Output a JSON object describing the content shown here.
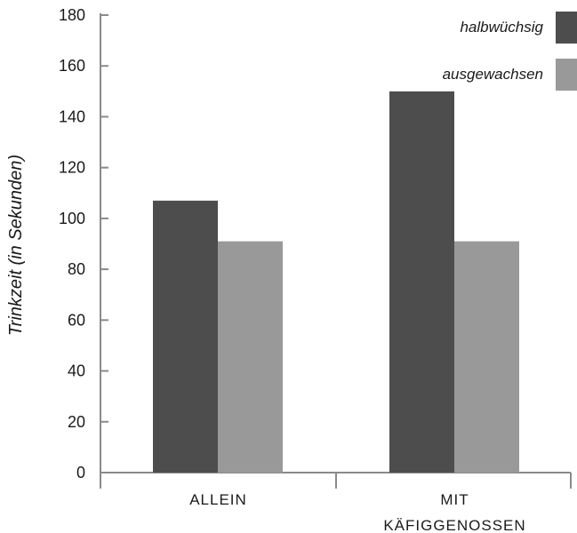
{
  "chart_data": {
    "type": "bar",
    "title": "",
    "xlabel": "",
    "ylabel": "Trinkzeit (in Sekunden)",
    "ylim": [
      0,
      180
    ],
    "yticks": [
      0,
      20,
      40,
      60,
      80,
      100,
      120,
      140,
      160,
      180
    ],
    "categories": [
      [
        "ALLEIN"
      ],
      [
        "MIT",
        "KÄFIGGENOSSEN"
      ]
    ],
    "series": [
      {
        "name": "halbwüchsig",
        "color": "#4d4d4d",
        "values": [
          107,
          150
        ]
      },
      {
        "name": "ausgewachsen",
        "color": "#999999",
        "values": [
          91,
          91
        ]
      }
    ],
    "legend_position": "top-right",
    "grid": false
  }
}
